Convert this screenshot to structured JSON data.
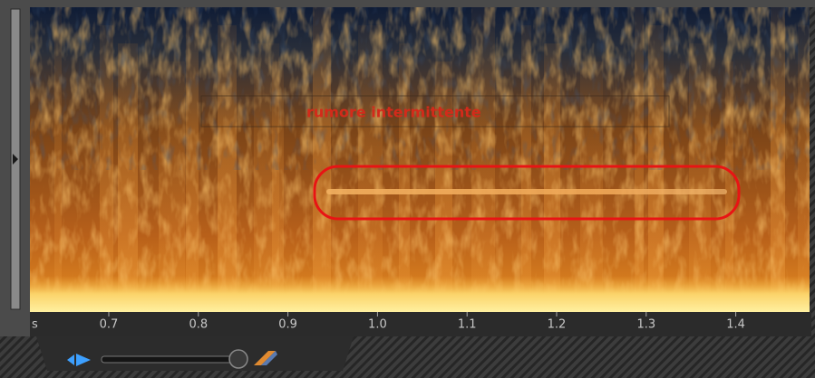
{
  "annotation": "rumore intermittente",
  "time_axis": {
    "unit": "s",
    "ticks": [
      "0.7",
      "0.8",
      "0.9",
      "1.0",
      "1.1",
      "1.2",
      "1.3",
      "1.4"
    ]
  }
}
